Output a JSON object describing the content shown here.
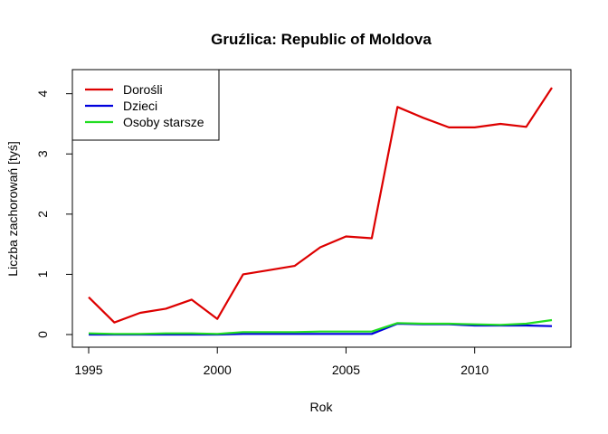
{
  "chart_data": {
    "type": "line",
    "title": "Gruźlica: Republic of Moldova",
    "xlabel": "Rok",
    "ylabel": "Liczba zachorowań [tyś]",
    "xlim": [
      1995,
      2013
    ],
    "ylim": [
      0,
      4.1
    ],
    "x_ticks": [
      1995,
      2000,
      2005,
      2010
    ],
    "y_ticks": [
      0,
      1,
      2,
      3,
      4
    ],
    "grid": false,
    "legend_position": "top-left",
    "x": [
      1995,
      1996,
      1997,
      1998,
      1999,
      2000,
      2001,
      2002,
      2003,
      2004,
      2005,
      2006,
      2007,
      2008,
      2009,
      2010,
      2011,
      2012,
      2013
    ],
    "series": [
      {
        "name": "Dorośli",
        "color": "#dd0000",
        "values": [
          0.62,
          0.2,
          0.36,
          0.43,
          0.58,
          0.26,
          1.0,
          1.07,
          1.14,
          1.45,
          1.63,
          1.6,
          3.78,
          3.6,
          3.44,
          3.44,
          3.5,
          3.45,
          4.1
        ]
      },
      {
        "name": "Dzieci",
        "color": "#0000dd",
        "values": [
          0.0,
          0.0,
          0.0,
          0.0,
          0.0,
          0.0,
          0.01,
          0.01,
          0.01,
          0.01,
          0.01,
          0.01,
          0.18,
          0.17,
          0.17,
          0.15,
          0.15,
          0.15,
          0.14
        ]
      },
      {
        "name": "Osoby starsze",
        "color": "#22dd22",
        "values": [
          0.02,
          0.01,
          0.01,
          0.02,
          0.02,
          0.01,
          0.04,
          0.04,
          0.04,
          0.05,
          0.05,
          0.05,
          0.19,
          0.18,
          0.18,
          0.17,
          0.16,
          0.18,
          0.24
        ]
      }
    ]
  }
}
